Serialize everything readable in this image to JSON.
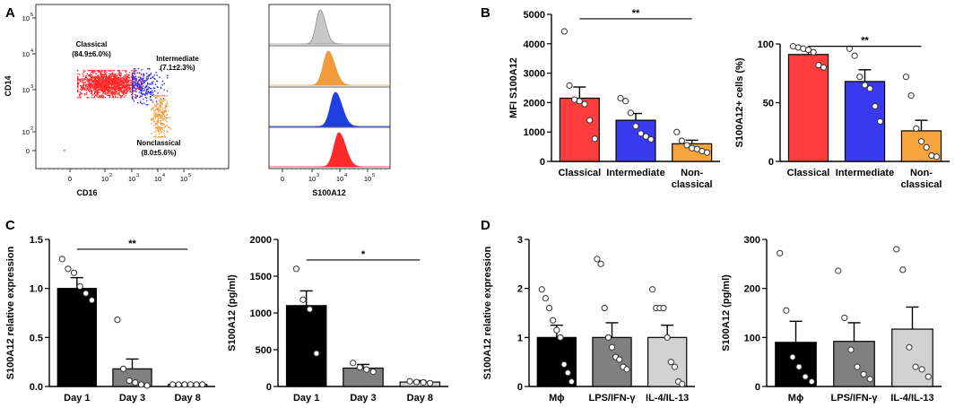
{
  "panels": {
    "a": {
      "label": "A",
      "flow": {
        "ylabel": "CD14",
        "xlabel": "CD16",
        "xticks": [
          "0",
          "10",
          "10",
          "10",
          "10"
        ],
        "xexps": [
          "",
          "2",
          "3",
          "4",
          "5"
        ],
        "yticks": [
          "0",
          "10",
          "10",
          "10",
          "10"
        ],
        "yexps": [
          "",
          "2",
          "3",
          "4",
          "5"
        ],
        "populations": [
          {
            "name": "Classical",
            "value": "(84.9±6.0%)",
            "color": "#ff2a2a"
          },
          {
            "name": "Intermediate",
            "value": "(7.1±2.3%)",
            "color": "#2c2cf0"
          },
          {
            "name": "Nonclassical",
            "value": "(8.0±5.6%)",
            "color": "#f39b3a"
          }
        ]
      },
      "histogram": {
        "xlabel": "S100A12",
        "xticks": [
          "0",
          "10",
          "10",
          "10"
        ],
        "xexps": [
          "",
          "3",
          "4",
          "5"
        ],
        "tracks": [
          {
            "name": "isotype",
            "fill": "#c8c8c8",
            "stroke": "#909090"
          },
          {
            "name": "nonclassical",
            "fill": "#f39b3a",
            "stroke": "#f39b3a"
          },
          {
            "name": "intermediate",
            "fill": "#1f3fe0",
            "stroke": "#1f3fe0"
          },
          {
            "name": "classical",
            "fill": "#ff2a2a",
            "stroke": "#ff2a2a"
          }
        ]
      }
    },
    "b": {
      "label": "B"
    },
    "c": {
      "label": "C"
    },
    "d": {
      "label": "D"
    }
  },
  "chart_data": [
    {
      "id": "b-left",
      "type": "bar",
      "ylabel": "MFI S100A12",
      "ylim": [
        0,
        5000
      ],
      "yticks": [
        0,
        1000,
        2000,
        3000,
        4000,
        5000
      ],
      "categories": [
        "Classical",
        "Intermediate",
        "Non-\nclassical"
      ],
      "colors": [
        "#ff3d3d",
        "#3a3af0",
        "#f7a43c"
      ],
      "values": [
        2150,
        1400,
        600
      ],
      "errors": [
        380,
        230,
        120
      ],
      "points": [
        [
          4420,
          2580,
          2100,
          2050,
          1950,
          1400,
          770
        ],
        [
          2150,
          2050,
          1650,
          1200,
          950,
          850,
          750
        ],
        [
          1000,
          700,
          550,
          450,
          420,
          350,
          300
        ]
      ],
      "significance": [
        {
          "from": 0,
          "to": 2,
          "y": 4850,
          "label": "**"
        }
      ]
    },
    {
      "id": "b-right",
      "type": "bar",
      "ylabel": "S100A12+ cells (%)",
      "ylim": [
        0,
        100
      ],
      "yticks": [
        0,
        50,
        100
      ],
      "categories": [
        "Classical",
        "Intermediate",
        "Non-\nclassical"
      ],
      "colors": [
        "#ff3d3d",
        "#3a3af0",
        "#f7a43c"
      ],
      "values": [
        91,
        68,
        26
      ],
      "errors": [
        3,
        10,
        9
      ],
      "points": [
        [
          98,
          97,
          96,
          95,
          93,
          82,
          80
        ],
        [
          96,
          90,
          72,
          65,
          62,
          47,
          34
        ],
        [
          72,
          56,
          28,
          17,
          12,
          5,
          4
        ]
      ],
      "significance": [
        {
          "from": 0,
          "to": 2,
          "y": 98,
          "label": "**"
        }
      ]
    },
    {
      "id": "c-left",
      "type": "bar",
      "ylabel": "S100A12 relative expression",
      "ylim": [
        0,
        1.5
      ],
      "yticks": [
        0.0,
        0.5,
        1.0,
        1.5
      ],
      "tickdecimals": 1,
      "categories": [
        "Day 1",
        "Day 3",
        "Day 8"
      ],
      "colors": [
        "#000000",
        "#808080",
        "#d2d2d2"
      ],
      "values": [
        1.0,
        0.18,
        0.02
      ],
      "errors": [
        0.11,
        0.1,
        0.005
      ],
      "points": [
        [
          1.3,
          1.2,
          1.16,
          1.02,
          0.95,
          0.88
        ],
        [
          0.68,
          0.18,
          0.06,
          0.04,
          0.02,
          0.01
        ],
        [
          0.02,
          0.02,
          0.02,
          0.02,
          0.02,
          0.02
        ]
      ],
      "significance": [
        {
          "from": 0,
          "to": 2,
          "y": 1.4,
          "label": "**"
        }
      ]
    },
    {
      "id": "c-right",
      "type": "bar",
      "ylabel": "S100A12 (pg/ml)",
      "ylim": [
        0,
        2000
      ],
      "yticks": [
        0,
        500,
        1000,
        1500,
        2000
      ],
      "categories": [
        "Day 1",
        "Day 3",
        "Day 8"
      ],
      "colors": [
        "#000000",
        "#808080",
        "#d2d2d2"
      ],
      "values": [
        1100,
        250,
        60
      ],
      "errors": [
        200,
        50,
        20
      ],
      "points": [
        [
          1600,
          1180,
          1050,
          450
        ],
        [
          320,
          260,
          230,
          200
        ],
        [
          70,
          60,
          55,
          45
        ]
      ],
      "significance": [
        {
          "from": 0,
          "to": 2,
          "y": 1720,
          "label": "*"
        }
      ]
    },
    {
      "id": "d-left",
      "type": "bar",
      "ylabel": "S100A12 relative expression",
      "ylim": [
        0,
        3
      ],
      "yticks": [
        0,
        1,
        2,
        3
      ],
      "categories": [
        "Mϕ",
        "LPS/IFN-γ",
        "IL-4/IL-13"
      ],
      "colors": [
        "#000000",
        "#808080",
        "#d2d2d2"
      ],
      "values": [
        1.0,
        1.0,
        1.0
      ],
      "errors": [
        0.25,
        0.3,
        0.25
      ],
      "points": [
        [
          1.98,
          1.8,
          1.6,
          1.35,
          1.15,
          1.0,
          0.45,
          0.28,
          0.1
        ],
        [
          2.6,
          2.5,
          1.6,
          1.0,
          0.8,
          0.6,
          0.55,
          0.4,
          0.35
        ],
        [
          1.98,
          1.6,
          1.6,
          1.6,
          1.0,
          0.5,
          0.4,
          0.1,
          0.05
        ]
      ],
      "significance": []
    },
    {
      "id": "d-right",
      "type": "bar",
      "ylabel": "S100A12 (pg/ml)",
      "ylim": [
        0,
        300
      ],
      "yticks": [
        0,
        100,
        200,
        300
      ],
      "categories": [
        "Mϕ",
        "LPS/IFN-γ",
        "IL-4/IL-13"
      ],
      "colors": [
        "#000000",
        "#808080",
        "#d2d2d2"
      ],
      "values": [
        90,
        92,
        117
      ],
      "errors": [
        43,
        38,
        45
      ],
      "points": [
        [
          272,
          155,
          60,
          40,
          20,
          10
        ],
        [
          236,
          140,
          75,
          40,
          25,
          15
        ],
        [
          280,
          238,
          80,
          40,
          35,
          20
        ]
      ],
      "significance": []
    }
  ]
}
